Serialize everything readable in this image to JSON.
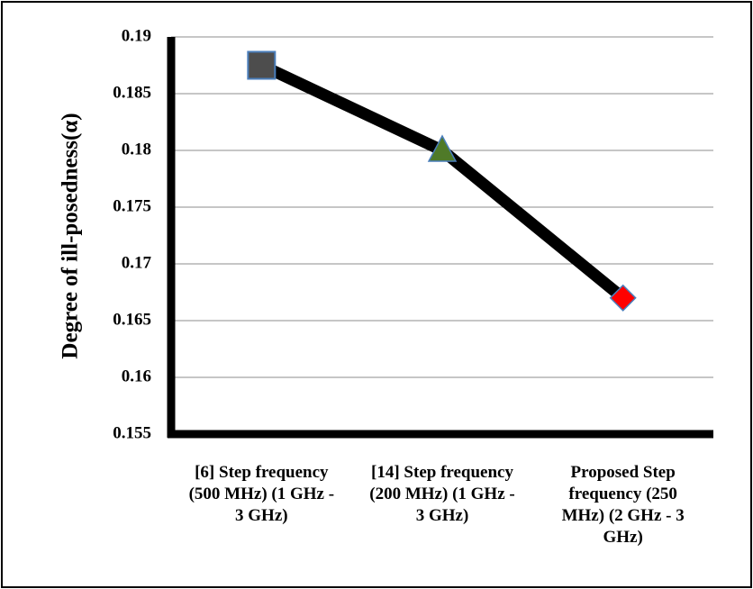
{
  "chart_data": {
    "type": "line",
    "title": "",
    "xlabel": "",
    "ylabel": "Degree of ill-posedness(α)",
    "ylim": [
      0.155,
      0.19
    ],
    "yticks": [
      "0.19",
      "0.185",
      "0.18",
      "0.175",
      "0.17",
      "0.165",
      "0.16",
      "0.155"
    ],
    "grid": true,
    "categories": [
      [
        "[6] Step frequency",
        "(500 MHz) (1 GHz -",
        "3 GHz)"
      ],
      [
        "[14] Step frequency",
        "(200 MHz) (1 GHz -",
        "3 GHz)"
      ],
      [
        "Proposed Step",
        "frequency (250",
        "MHz)  (2 GHz - 3",
        "GHz)"
      ]
    ],
    "series": [
      {
        "name": "Degree of ill-posedness",
        "values": [
          0.1875,
          0.18,
          0.167
        ],
        "line_color": "#000000",
        "markers": [
          {
            "shape": "square",
            "color": "#4d4d4d"
          },
          {
            "shape": "triangle",
            "color": "#4f7a28"
          },
          {
            "shape": "diamond",
            "color": "#ff0000"
          }
        ]
      }
    ]
  }
}
